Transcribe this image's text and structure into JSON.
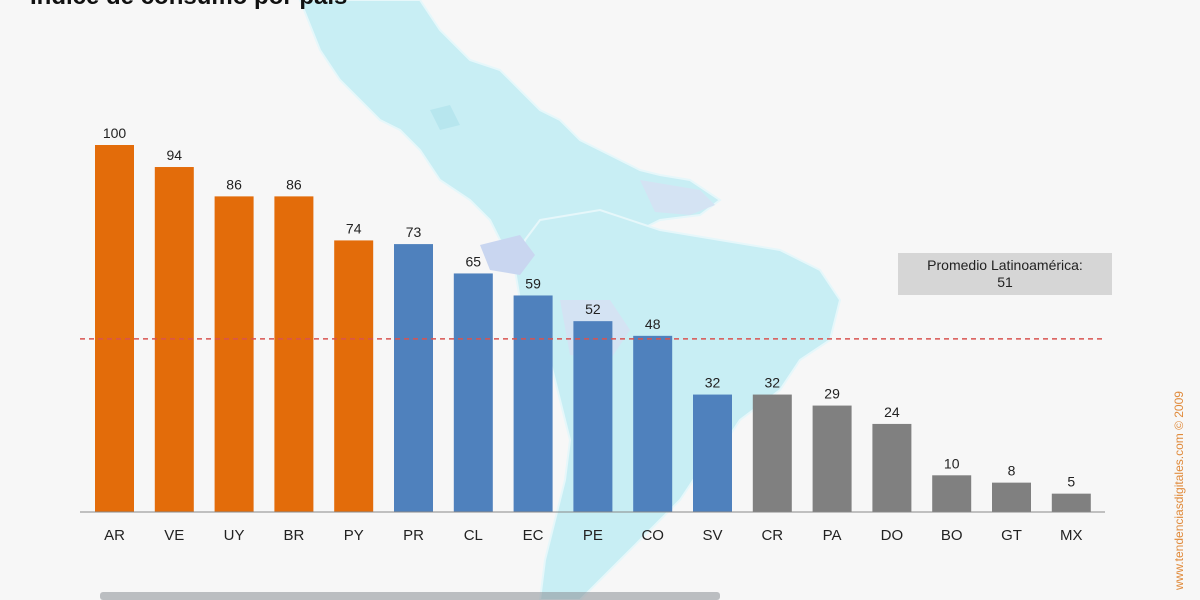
{
  "chart_data": {
    "type": "bar",
    "title": "Índice de consumo por país",
    "categories": [
      "AR",
      "VE",
      "UY",
      "BR",
      "PY",
      "PR",
      "CL",
      "EC",
      "PE",
      "CO",
      "SV",
      "CR",
      "PA",
      "DO",
      "BO",
      "GT",
      "MX"
    ],
    "values": [
      100,
      94,
      86,
      86,
      74,
      73,
      65,
      59,
      52,
      48,
      32,
      32,
      29,
      24,
      10,
      8,
      5
    ],
    "bar_colors": [
      "#e36c0a",
      "#e36c0a",
      "#e36c0a",
      "#e36c0a",
      "#e36c0a",
      "#4f81bd",
      "#4f81bd",
      "#4f81bd",
      "#4f81bd",
      "#4f81bd",
      "#4f81bd",
      "#808080",
      "#808080",
      "#808080",
      "#808080",
      "#808080",
      "#808080"
    ],
    "ylim": [
      0,
      100
    ],
    "average": {
      "value": 51,
      "label_line1": "Promedio Latinoamérica:",
      "label_line2": "51",
      "line_color": "#d9534f"
    },
    "grid": false,
    "legend": "none"
  },
  "copyright": "www.tendenciasdigitales.com © 2009",
  "colors": {
    "background": "#f7f7f7",
    "map": "#c8eef4",
    "orange": "#e36c0a",
    "blue": "#4f81bd",
    "gray": "#808080"
  }
}
